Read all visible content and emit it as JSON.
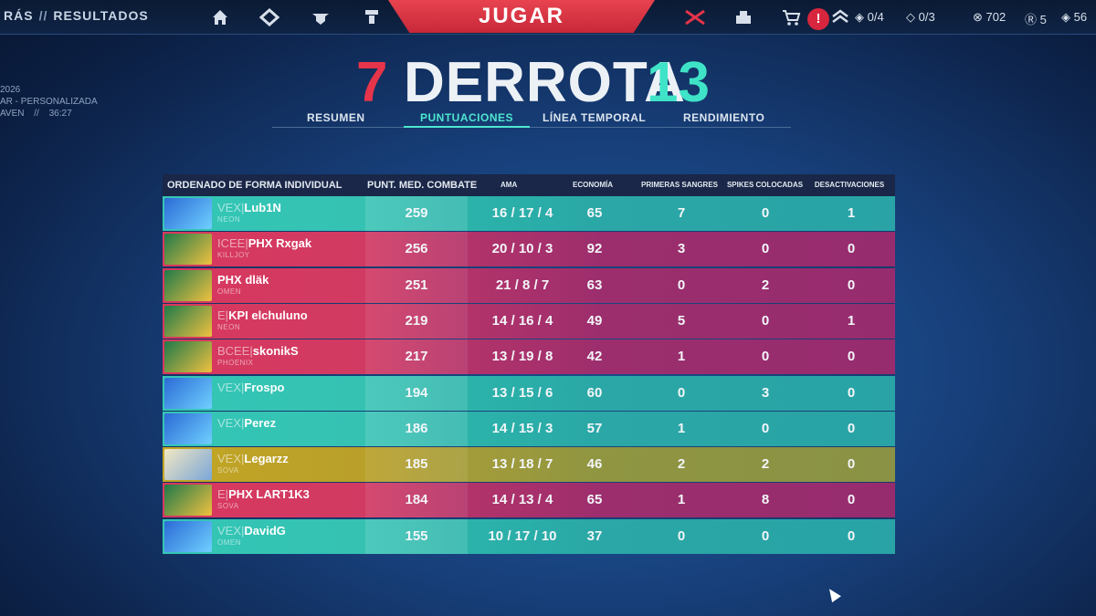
{
  "topbar": {
    "breadcrumb_back": "RÁS",
    "breadcrumb_sep": "//",
    "breadcrumb_current": "RESULTADOS",
    "play_label": "JUGAR",
    "alert_mark": "!",
    "counter_a": "0/4",
    "counter_b": "0/3",
    "vp": "702",
    "rp": "5",
    "kc": "56",
    "icons": [
      "home-icon",
      "collection-icon",
      "agents-icon",
      "career-icon",
      "battlepass-icon",
      "social-icon",
      "store-icon",
      "alert-icon",
      "rank-icon"
    ]
  },
  "match_info": {
    "date": "2026",
    "mode": "AR - PERSONALIZADA",
    "map": "AVEN",
    "sep": "//",
    "duration": "36:27"
  },
  "score": {
    "left": "7",
    "result": "DERROTA",
    "right": "13"
  },
  "tabs": [
    {
      "label": "RESUMEN",
      "active": false
    },
    {
      "label": "PUNTUACIONES",
      "active": true
    },
    {
      "label": "LÍNEA TEMPORAL",
      "active": false
    },
    {
      "label": "RENDIMIENTO",
      "active": false
    }
  ],
  "table": {
    "headers": {
      "sort": "ORDENADO DE FORMA INDIVIDUAL",
      "acs": "PUNT. MED. COMBATE",
      "kda": "AMA",
      "economy": "ECONOMÍA",
      "first_bloods": "PRIMERAS SANGRES",
      "plants": "SPIKES COLOCADAS",
      "defuses": "DESACTIVACIONES"
    },
    "rows": [
      {
        "tag": "VEX",
        "name": "Lub1N",
        "agent": "NEON",
        "team": "teal",
        "acs": "259",
        "kda": "16 / 17 / 4",
        "econ": "65",
        "fb": "7",
        "plants": "0",
        "defuses": "1"
      },
      {
        "tag": "ICEE",
        "name": "PHX Rxgak",
        "agent": "KILLJOY",
        "team": "pink",
        "acs": "256",
        "kda": "20 / 10 / 3",
        "econ": "92",
        "fb": "3",
        "plants": "0",
        "defuses": "0"
      },
      {
        "tag": "",
        "name": "PHX dläk",
        "agent": "OMEN",
        "team": "pink",
        "acs": "251",
        "kda": "21 / 8 / 7",
        "econ": "63",
        "fb": "0",
        "plants": "2",
        "defuses": "0"
      },
      {
        "tag": "E",
        "name": "KPI elchuluno",
        "agent": "NEON",
        "team": "pink",
        "acs": "219",
        "kda": "14 / 16 / 4",
        "econ": "49",
        "fb": "5",
        "plants": "0",
        "defuses": "1"
      },
      {
        "tag": "BCEE",
        "name": "skonikS",
        "agent": "PHOENIX",
        "team": "pink",
        "acs": "217",
        "kda": "13 / 19 / 8",
        "econ": "42",
        "fb": "1",
        "plants": "0",
        "defuses": "0"
      },
      {
        "tag": "VEX",
        "name": "Frospo",
        "agent": "",
        "team": "teal",
        "acs": "194",
        "kda": "13 / 15 / 6",
        "econ": "60",
        "fb": "0",
        "plants": "3",
        "defuses": "0"
      },
      {
        "tag": "VEX",
        "name": "Perez",
        "agent": "",
        "team": "teal",
        "acs": "186",
        "kda": "14 / 15 / 3",
        "econ": "57",
        "fb": "1",
        "plants": "0",
        "defuses": "0"
      },
      {
        "tag": "VEX",
        "name": "Legarzz",
        "agent": "SOVA",
        "team": "gold",
        "acs": "185",
        "kda": "13 / 18 / 7",
        "econ": "46",
        "fb": "2",
        "plants": "2",
        "defuses": "0"
      },
      {
        "tag": "E",
        "name": "PHX LART1K3",
        "agent": "SOVA",
        "team": "pink",
        "acs": "184",
        "kda": "14 / 13 / 4",
        "econ": "65",
        "fb": "1",
        "plants": "8",
        "defuses": "0"
      },
      {
        "tag": "VEX",
        "name": "DavidG",
        "agent": "OMEN",
        "team": "teal",
        "acs": "155",
        "kda": "10 / 17 / 10",
        "econ": "37",
        "fb": "0",
        "plants": "0",
        "defuses": "0"
      }
    ]
  },
  "colors": {
    "ally_team": "#34c6b6",
    "enemy_team": "#d8385e",
    "self_row": "#c2a524",
    "play_button": "#e8434f",
    "active_tab": "#4ee7cf"
  }
}
